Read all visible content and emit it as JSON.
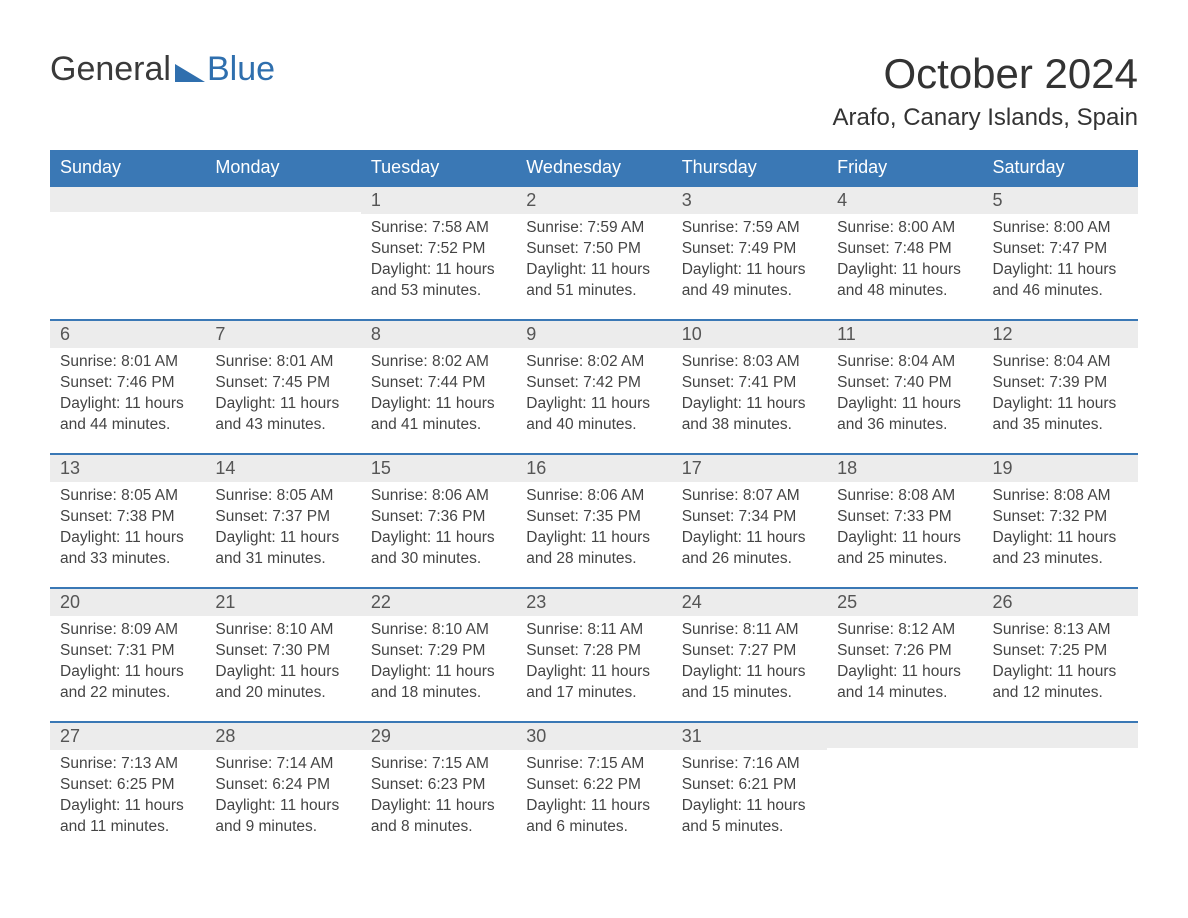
{
  "logo": {
    "general": "General",
    "blue": "Blue"
  },
  "title": "October 2024",
  "location": "Arafo, Canary Islands, Spain",
  "colors": {
    "header_bg": "#3a78b5",
    "header_text": "#ffffff",
    "daynum_bg": "#ececec",
    "rule": "#3a78b5",
    "body_text": "#444444",
    "logo_blue": "#2f6fae",
    "page_bg": "#ffffff"
  },
  "weekdays": [
    "Sunday",
    "Monday",
    "Tuesday",
    "Wednesday",
    "Thursday",
    "Friday",
    "Saturday"
  ],
  "labels": {
    "sunrise": "Sunrise:",
    "sunset": "Sunset:",
    "daylight": "Daylight:"
  },
  "weeks": [
    [
      null,
      null,
      {
        "day": "1",
        "sunrise": "7:58 AM",
        "sunset": "7:52 PM",
        "daylight": "11 hours and 53 minutes."
      },
      {
        "day": "2",
        "sunrise": "7:59 AM",
        "sunset": "7:50 PM",
        "daylight": "11 hours and 51 minutes."
      },
      {
        "day": "3",
        "sunrise": "7:59 AM",
        "sunset": "7:49 PM",
        "daylight": "11 hours and 49 minutes."
      },
      {
        "day": "4",
        "sunrise": "8:00 AM",
        "sunset": "7:48 PM",
        "daylight": "11 hours and 48 minutes."
      },
      {
        "day": "5",
        "sunrise": "8:00 AM",
        "sunset": "7:47 PM",
        "daylight": "11 hours and 46 minutes."
      }
    ],
    [
      {
        "day": "6",
        "sunrise": "8:01 AM",
        "sunset": "7:46 PM",
        "daylight": "11 hours and 44 minutes."
      },
      {
        "day": "7",
        "sunrise": "8:01 AM",
        "sunset": "7:45 PM",
        "daylight": "11 hours and 43 minutes."
      },
      {
        "day": "8",
        "sunrise": "8:02 AM",
        "sunset": "7:44 PM",
        "daylight": "11 hours and 41 minutes."
      },
      {
        "day": "9",
        "sunrise": "8:02 AM",
        "sunset": "7:42 PM",
        "daylight": "11 hours and 40 minutes."
      },
      {
        "day": "10",
        "sunrise": "8:03 AM",
        "sunset": "7:41 PM",
        "daylight": "11 hours and 38 minutes."
      },
      {
        "day": "11",
        "sunrise": "8:04 AM",
        "sunset": "7:40 PM",
        "daylight": "11 hours and 36 minutes."
      },
      {
        "day": "12",
        "sunrise": "8:04 AM",
        "sunset": "7:39 PM",
        "daylight": "11 hours and 35 minutes."
      }
    ],
    [
      {
        "day": "13",
        "sunrise": "8:05 AM",
        "sunset": "7:38 PM",
        "daylight": "11 hours and 33 minutes."
      },
      {
        "day": "14",
        "sunrise": "8:05 AM",
        "sunset": "7:37 PM",
        "daylight": "11 hours and 31 minutes."
      },
      {
        "day": "15",
        "sunrise": "8:06 AM",
        "sunset": "7:36 PM",
        "daylight": "11 hours and 30 minutes."
      },
      {
        "day": "16",
        "sunrise": "8:06 AM",
        "sunset": "7:35 PM",
        "daylight": "11 hours and 28 minutes."
      },
      {
        "day": "17",
        "sunrise": "8:07 AM",
        "sunset": "7:34 PM",
        "daylight": "11 hours and 26 minutes."
      },
      {
        "day": "18",
        "sunrise": "8:08 AM",
        "sunset": "7:33 PM",
        "daylight": "11 hours and 25 minutes."
      },
      {
        "day": "19",
        "sunrise": "8:08 AM",
        "sunset": "7:32 PM",
        "daylight": "11 hours and 23 minutes."
      }
    ],
    [
      {
        "day": "20",
        "sunrise": "8:09 AM",
        "sunset": "7:31 PM",
        "daylight": "11 hours and 22 minutes."
      },
      {
        "day": "21",
        "sunrise": "8:10 AM",
        "sunset": "7:30 PM",
        "daylight": "11 hours and 20 minutes."
      },
      {
        "day": "22",
        "sunrise": "8:10 AM",
        "sunset": "7:29 PM",
        "daylight": "11 hours and 18 minutes."
      },
      {
        "day": "23",
        "sunrise": "8:11 AM",
        "sunset": "7:28 PM",
        "daylight": "11 hours and 17 minutes."
      },
      {
        "day": "24",
        "sunrise": "8:11 AM",
        "sunset": "7:27 PM",
        "daylight": "11 hours and 15 minutes."
      },
      {
        "day": "25",
        "sunrise": "8:12 AM",
        "sunset": "7:26 PM",
        "daylight": "11 hours and 14 minutes."
      },
      {
        "day": "26",
        "sunrise": "8:13 AM",
        "sunset": "7:25 PM",
        "daylight": "11 hours and 12 minutes."
      }
    ],
    [
      {
        "day": "27",
        "sunrise": "7:13 AM",
        "sunset": "6:25 PM",
        "daylight": "11 hours and 11 minutes."
      },
      {
        "day": "28",
        "sunrise": "7:14 AM",
        "sunset": "6:24 PM",
        "daylight": "11 hours and 9 minutes."
      },
      {
        "day": "29",
        "sunrise": "7:15 AM",
        "sunset": "6:23 PM",
        "daylight": "11 hours and 8 minutes."
      },
      {
        "day": "30",
        "sunrise": "7:15 AM",
        "sunset": "6:22 PM",
        "daylight": "11 hours and 6 minutes."
      },
      {
        "day": "31",
        "sunrise": "7:16 AM",
        "sunset": "6:21 PM",
        "daylight": "11 hours and 5 minutes."
      },
      null,
      null
    ]
  ]
}
